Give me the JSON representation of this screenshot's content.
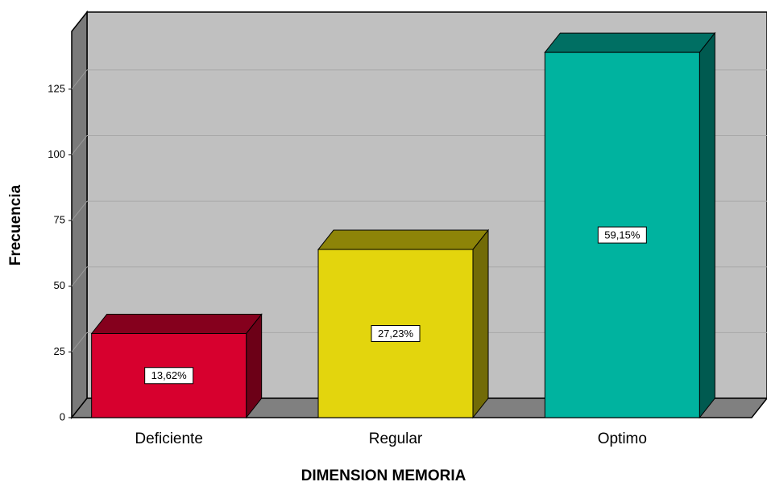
{
  "chart_data": {
    "type": "bar3d",
    "x_label": "DIMENSION MEMORIA",
    "y_label": "Frecuencia",
    "categories": [
      "Deficiente",
      "Regular",
      "Optimo"
    ],
    "values": [
      32,
      64,
      139
    ],
    "percentages": [
      13.62,
      27.23,
      59.15
    ],
    "percentage_labels": [
      "13,62%",
      "27,23%",
      "59,15%"
    ],
    "colors": [
      "#d7002e",
      "#e3d50d",
      "#00b39f"
    ],
    "ylim": [
      0,
      147
    ],
    "yticks": [
      0,
      25,
      50,
      75,
      100,
      125
    ],
    "grid": true
  }
}
